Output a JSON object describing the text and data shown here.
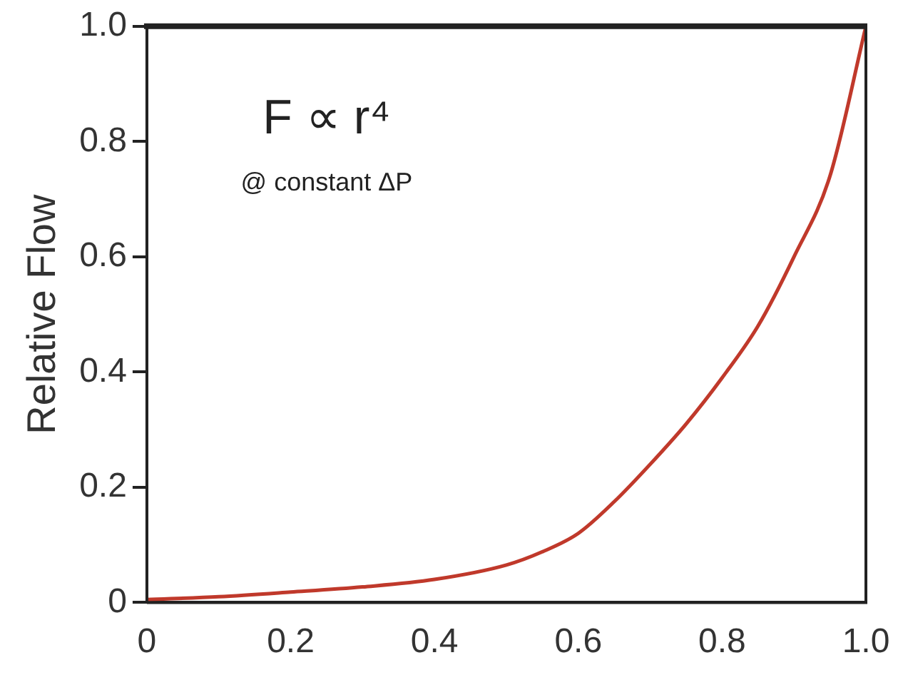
{
  "chart_data": {
    "type": "line",
    "ylabel": "Relative Flow",
    "annotations": [
      "F ∝ r⁴",
      "@ constant ΔP"
    ],
    "series": [
      {
        "color": "#c0392b",
        "x": [
          0,
          0.1,
          0.2,
          0.3,
          0.4,
          0.5,
          0.55,
          0.6,
          0.65,
          0.7,
          0.75,
          0.8,
          0.85,
          0.9,
          0.95,
          1.0
        ],
        "values": [
          0.005,
          0.01,
          0.018,
          0.027,
          0.04,
          0.065,
          0.088,
          0.12,
          0.175,
          0.24,
          0.31,
          0.39,
          0.48,
          0.6,
          0.74,
          1.0
        ]
      }
    ],
    "xlim": [
      0,
      1
    ],
    "ylim": [
      0,
      1
    ],
    "xticks": [
      0,
      0.2,
      0.4,
      0.6,
      0.8,
      {
        "value": 1,
        "label": "1.0"
      }
    ],
    "yticks": [
      0,
      0.2,
      0.4,
      0.6,
      0.8,
      {
        "value": 1,
        "label": "1.0"
      }
    ],
    "grid": false,
    "legend": false,
    "marker": "none",
    "line_style": "solid"
  }
}
